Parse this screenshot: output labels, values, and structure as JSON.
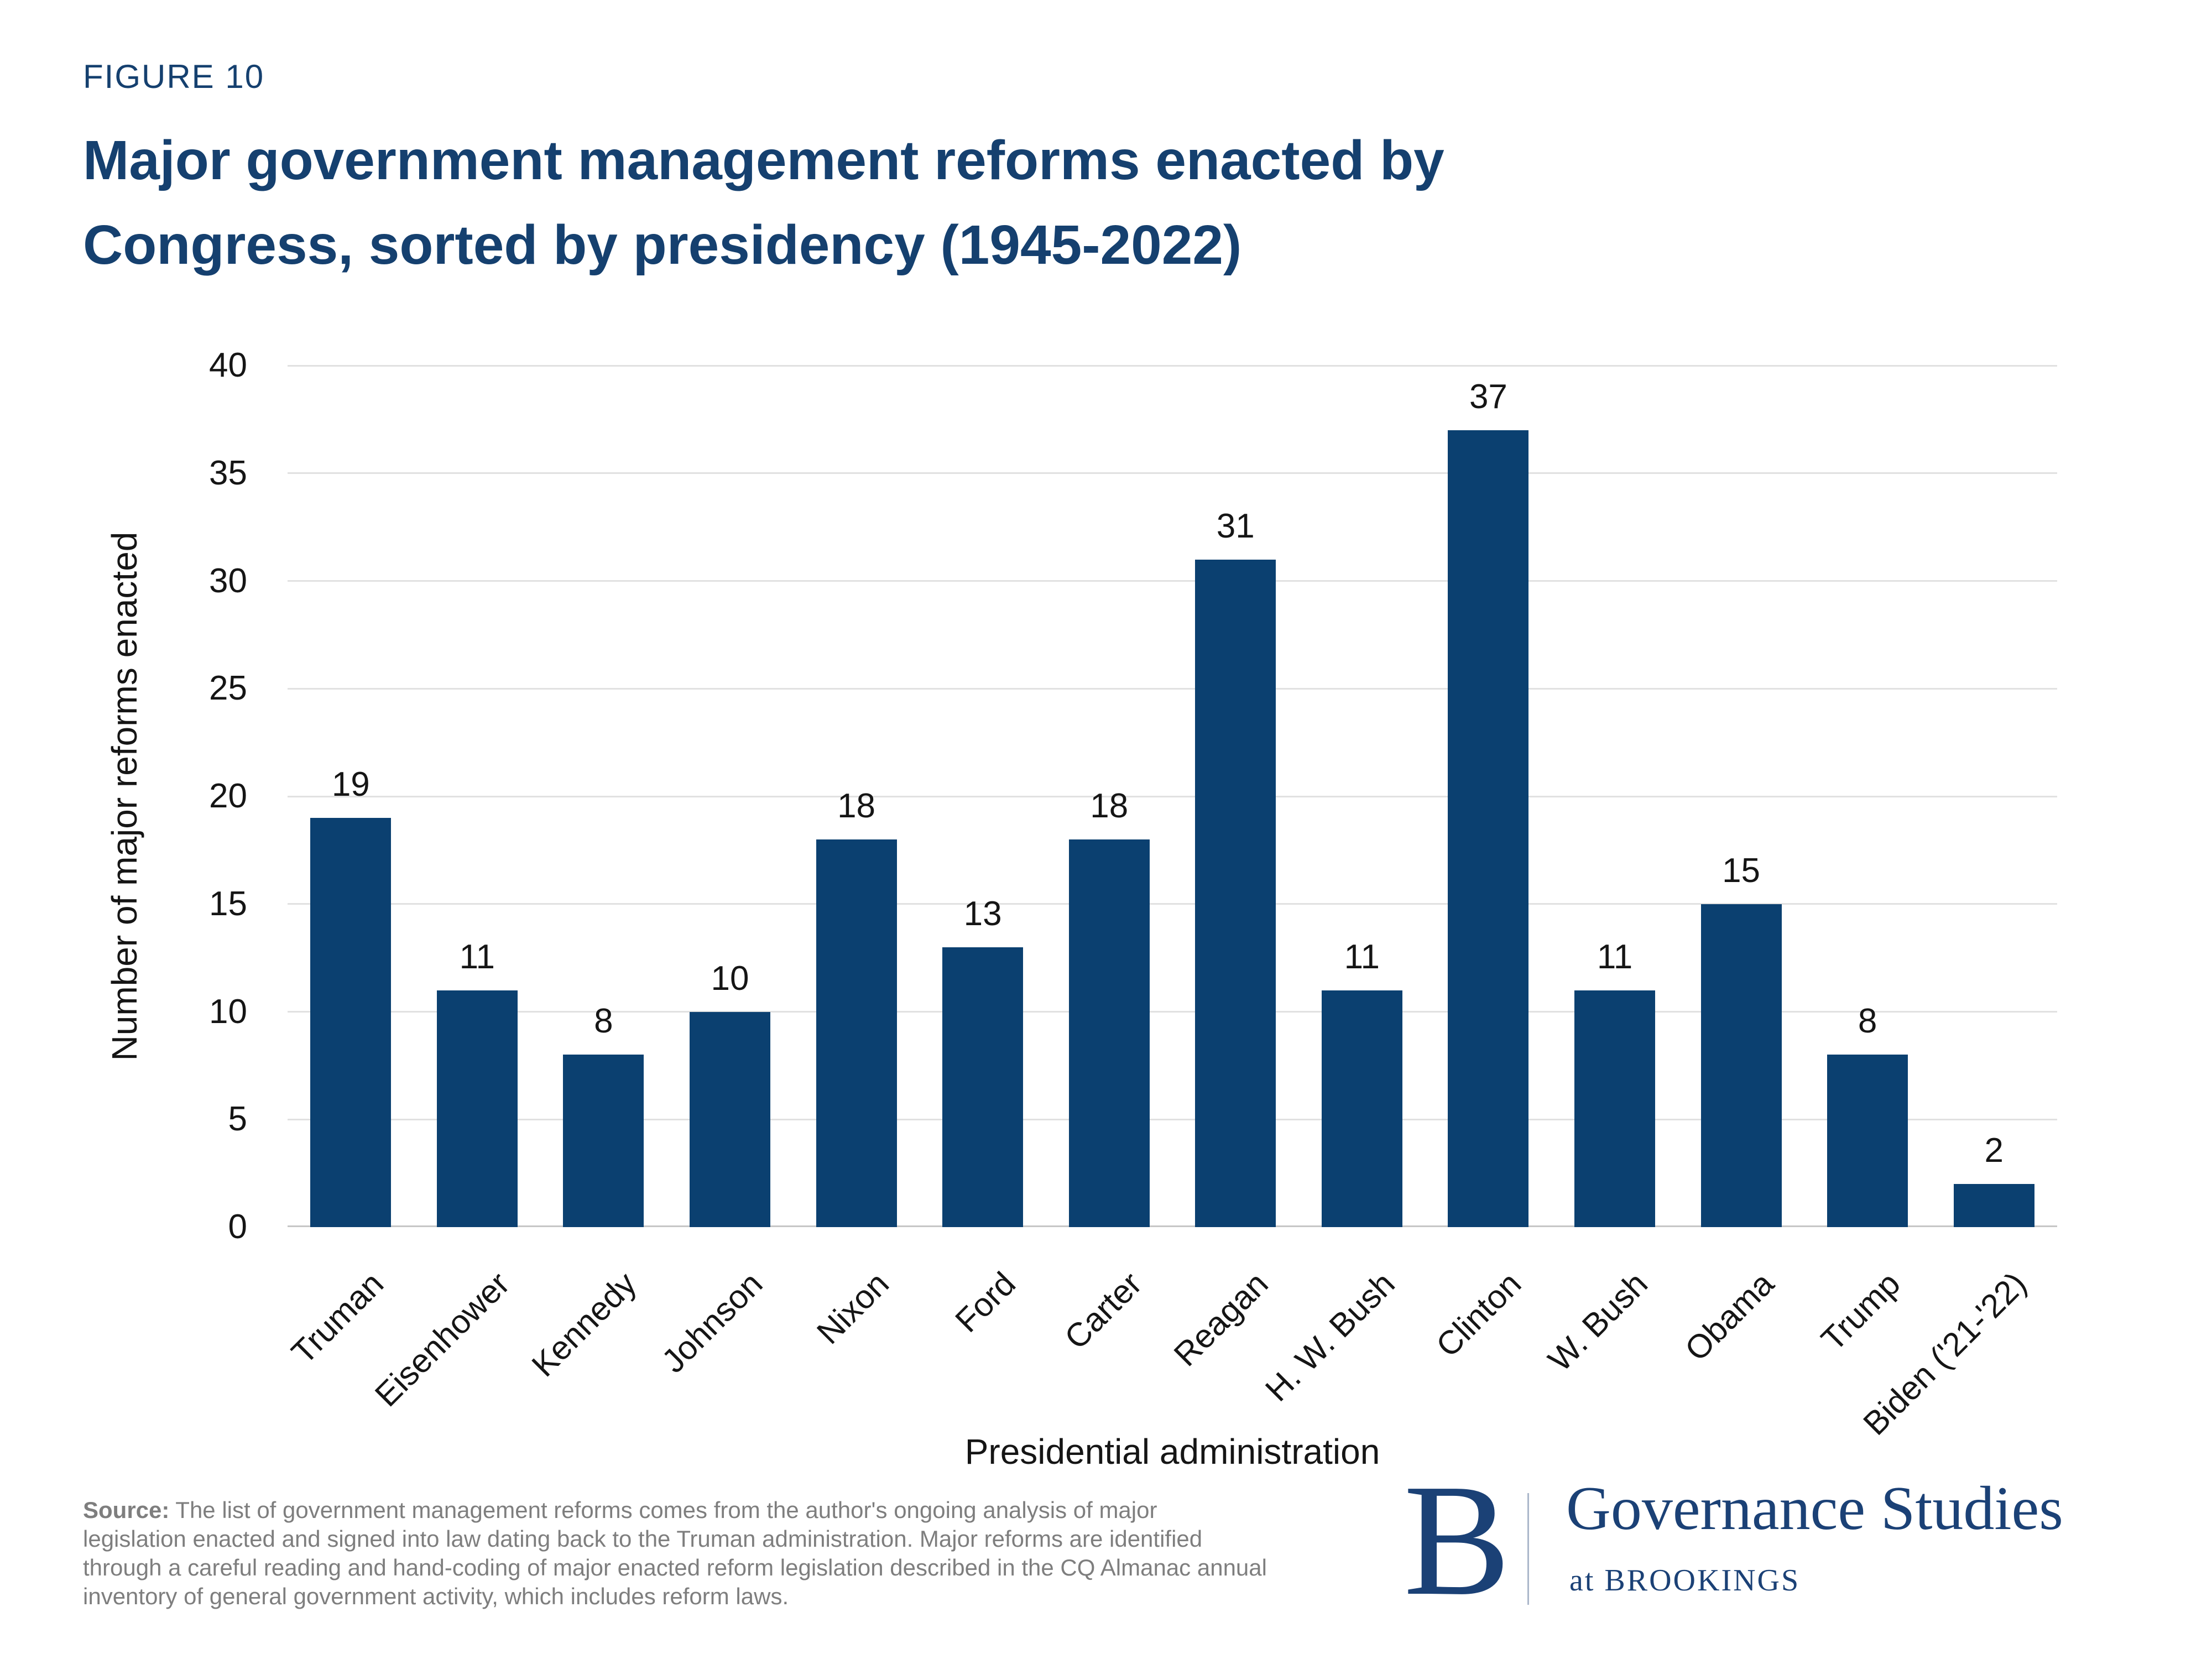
{
  "figure_label": "FIGURE 10",
  "title": {
    "line1": "Major government management reforms enacted by",
    "line2": "Congress, sorted by presidency (1945-2022)"
  },
  "chart_data": {
    "type": "bar",
    "title": "Major government management reforms enacted by Congress, sorted by presidency (1945-2022)",
    "categories": [
      "Truman",
      "Eisenhower",
      "Kennedy",
      "Johnson",
      "Nixon",
      "Ford",
      "Carter",
      "Reagan",
      "H. W. Bush",
      "Clinton",
      "W. Bush",
      "Obama",
      "Trump",
      "Biden ('21-'22)"
    ],
    "values": [
      19,
      11,
      8,
      10,
      18,
      13,
      18,
      31,
      11,
      37,
      11,
      15,
      8,
      2
    ],
    "xlabel": "Presidential administration",
    "ylabel": "Number of major reforms enacted",
    "ylim": [
      0,
      40
    ],
    "ytick_step": 5,
    "grid": true,
    "legend": "none",
    "value_labels": true,
    "bar_color": "#0B4070"
  },
  "source": {
    "label": "Source:",
    "lines": [
      " The list of government management reforms comes from the author's ongoing analysis of major",
      "legislation enacted and signed into law dating back to the Truman administration. Major reforms are identified",
      "through a careful reading and hand-coding of major enacted reform legislation described in the CQ Almanac annual",
      "inventory of general government activity, which includes reform laws."
    ]
  },
  "logo": {
    "b": "B",
    "name": "Governance Studies",
    "sub": "at BROOKINGS"
  },
  "colors": {
    "title_navy": "#15406F",
    "bar_navy": "#0B4070",
    "gridline": "#E1E1E1",
    "axis_line": "#C6C6C6",
    "label_text": "#151515",
    "source_gray": "#7E7E7E",
    "logo_navy": "#1B4176",
    "logo_divider": "#ABB7CA"
  }
}
